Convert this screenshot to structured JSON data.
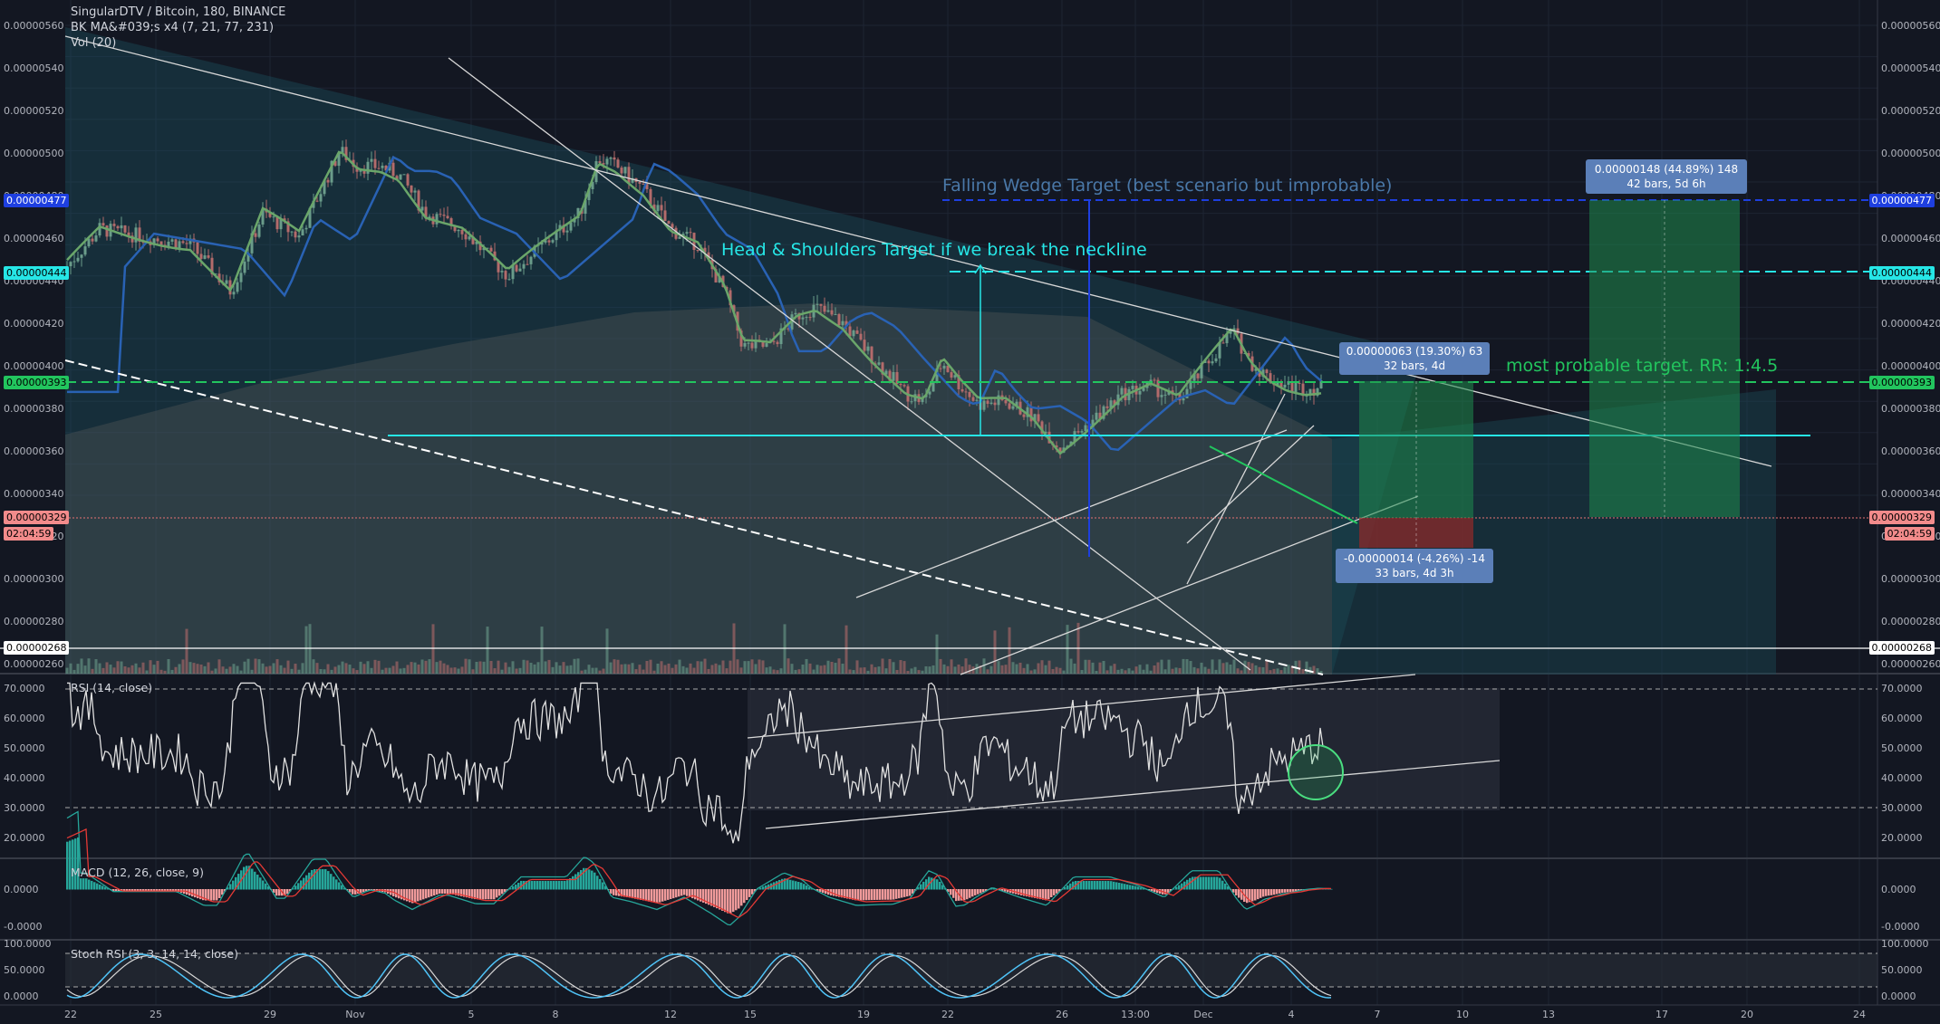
{
  "legend": {
    "title": "SingularDTV / Bitcoin, 180, BINANCE",
    "ma": "BK MA&#039;s x4 (7, 21, 77, 231)",
    "vol": "Vol (20)"
  },
  "panes": {
    "rsi": "RSI (14, close)",
    "macd": "MACD (12, 26, close, 9)",
    "stoch": "Stoch RSI (3, 3, 14, 14, close)"
  },
  "price_axis_labels": [
    "0.00000560",
    "0.00000540",
    "0.00000520",
    "0.00000500",
    "0.00000480",
    "0.00000460",
    "0.00000440",
    "0.00000420",
    "0.00000400",
    "0.00000380",
    "0.00000360",
    "0.00000340",
    "0.00000320",
    "0.00000300",
    "0.00000280",
    "0.00000260"
  ],
  "rsi_axis_labels": [
    "70.0000",
    "60.0000",
    "50.0000",
    "40.0000",
    "30.0000",
    "20.0000"
  ],
  "macd_axis_labels": [
    "0.0000",
    "-0.0000"
  ],
  "stoch_axis_labels": [
    "100.0000",
    "50.0000",
    "0.0000"
  ],
  "time_axis_labels": [
    "22",
    "25",
    "29",
    "Nov",
    "5",
    "8",
    "12",
    "15",
    "19",
    "22",
    "26",
    "13:00",
    "Dec",
    "4",
    "7",
    "10",
    "13",
    "17",
    "20",
    "24"
  ],
  "badges": {
    "p477": "0.00000477",
    "p444": "0.00000444",
    "p393": "0.00000393",
    "p329": "0.00000329",
    "countdown": "02:04:59",
    "p268": "0.00000268"
  },
  "annotations": {
    "falling_wedge": "Falling Wedge Target (best scenario but improbable)",
    "head_shoulders": "Head & Shoulders Target if we break the neckline",
    "most_probable": "most probable target. RR: 1:4.5"
  },
  "boxes": {
    "big_target": [
      "0.00000148 (44.89%) 148",
      "42 bars, 5d 6h"
    ],
    "small_target": [
      "0.00000063 (19.30%) 63",
      "32 bars, 4d"
    ],
    "stop": [
      "-0.00000014 (-4.26%) -14",
      "33 bars, 4d 3h"
    ]
  },
  "colors": {
    "background": "#131722",
    "up_candle": "#6a9c8a",
    "down_candle": "#b36b6b",
    "ma_green": "#6aa66a",
    "ma_blue": "#2962b4",
    "cyan_line": "#26e6e6",
    "green_dash": "#22c55e",
    "blue_dash": "#1e3fe0",
    "rsi_line": "#e0e0e0",
    "stoch_k": "#4fc3f7",
    "macd_hist_pos": "#26a69a",
    "macd_hist_neg": "#ef9a9a"
  }
}
